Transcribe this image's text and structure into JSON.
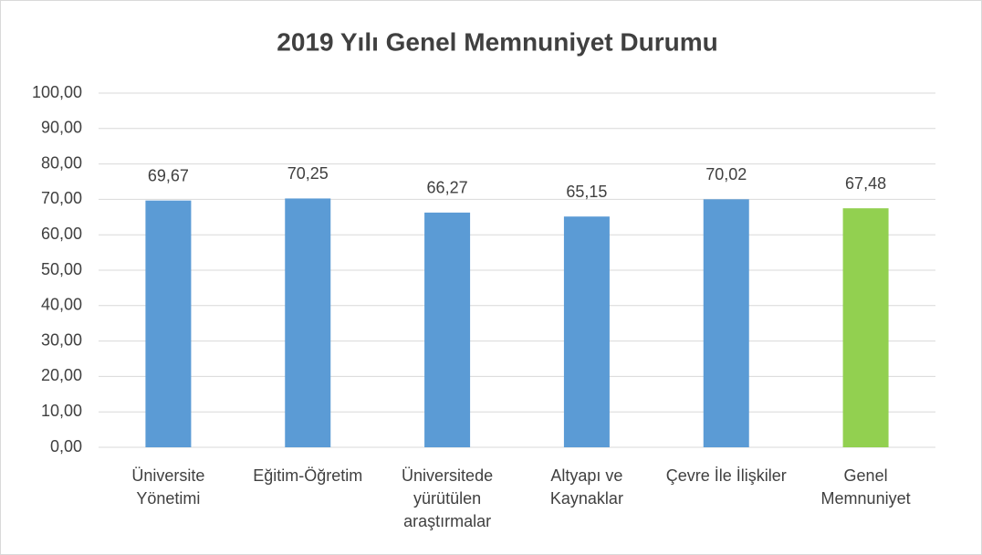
{
  "chart_data": {
    "type": "bar",
    "title": "2019 Yılı Genel Memnuniyet Durumu",
    "categories": [
      "Üniversite Yönetimi",
      "Eğitim-Öğretim",
      "Üniversitede yürütülen araştırmalar",
      "Altyapı ve Kaynaklar",
      "Çevre İle İlişkiler",
      "Genel Memnuniyet"
    ],
    "values": [
      69.67,
      70.25,
      66.27,
      65.15,
      70.02,
      67.48
    ],
    "value_labels": [
      "69,67",
      "70,25",
      "66,27",
      "65,15",
      "70,02",
      "67,48"
    ],
    "colors": [
      "#5b9bd5",
      "#5b9bd5",
      "#5b9bd5",
      "#5b9bd5",
      "#5b9bd5",
      "#92d050"
    ],
    "ylim": [
      0,
      100
    ],
    "yticks": [
      {
        "value": 0,
        "label": "0,00"
      },
      {
        "value": 10,
        "label": "10,00"
      },
      {
        "value": 20,
        "label": "20,00"
      },
      {
        "value": 30,
        "label": "30,00"
      },
      {
        "value": 40,
        "label": "40,00"
      },
      {
        "value": 50,
        "label": "50,00"
      },
      {
        "value": 60,
        "label": "60,00"
      },
      {
        "value": 70,
        "label": "70,00"
      },
      {
        "value": 80,
        "label": "80,00"
      },
      {
        "value": 90,
        "label": "90,00"
      },
      {
        "value": 100,
        "label": "100,00"
      }
    ],
    "grid": true
  }
}
